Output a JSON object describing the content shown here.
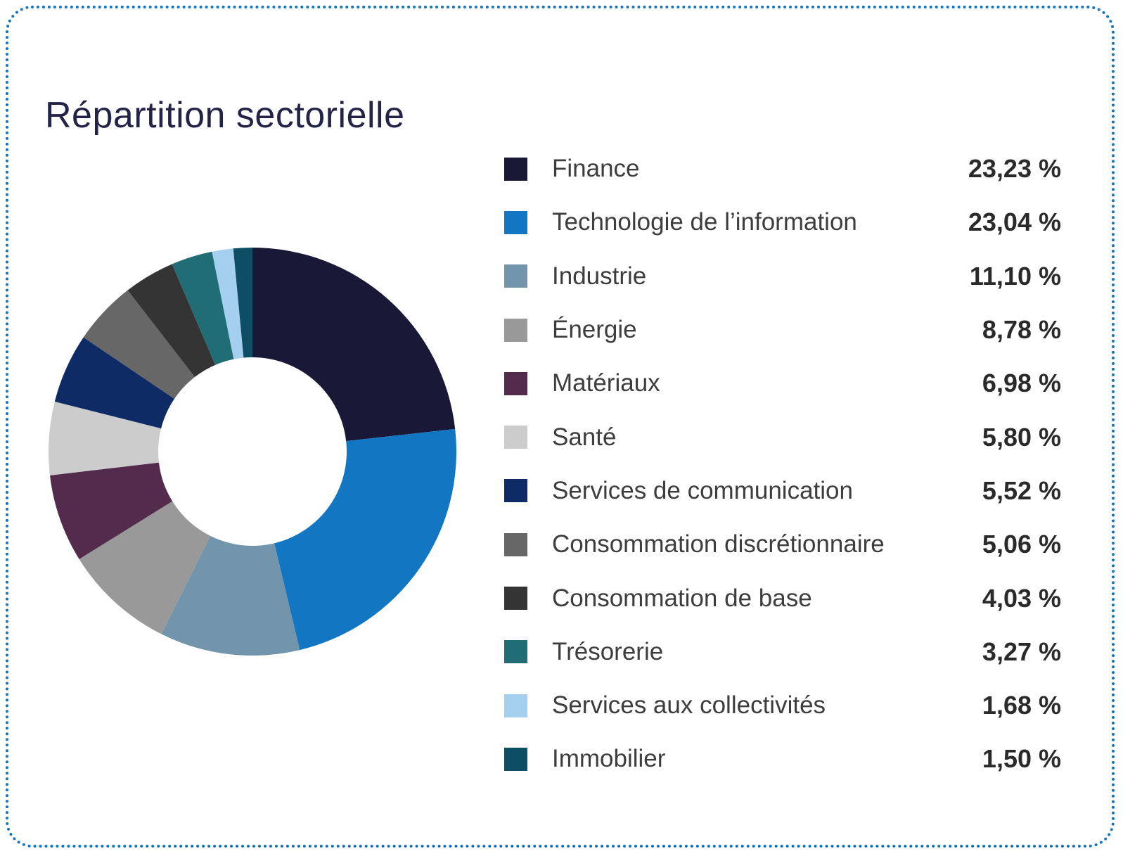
{
  "card": {
    "title": "Répartition sectorielle"
  },
  "colors": {
    "border": "#1173bd",
    "title": "#232347",
    "label_text": "#3d3d3d",
    "value_text": "#2a2a2a"
  },
  "chart_data": {
    "type": "pie",
    "subtype": "donut",
    "title": "Répartition sectorielle",
    "inner_radius_ratio": 0.462,
    "start_angle_deg": -90,
    "direction": "clockwise",
    "legend_position": "right",
    "categories": [
      "Finance",
      "Technologie de l’information",
      "Industrie",
      "Énergie",
      "Matériaux",
      "Santé",
      "Services de communication",
      "Consommation discrétionnaire",
      "Consommation de base",
      "Trésorerie",
      "Services aux collectivités",
      "Immobilier"
    ],
    "values": [
      23.23,
      23.04,
      11.1,
      8.78,
      6.98,
      5.8,
      5.52,
      5.06,
      4.03,
      3.27,
      1.68,
      1.5
    ],
    "value_labels": [
      "23,23 %",
      "23,04 %",
      "11,10 %",
      "8,78 %",
      "6,98 %",
      "5,80 %",
      "5,52 %",
      "5,06 %",
      "4,03 %",
      "3,27 %",
      "1,68 %",
      "1,50 %"
    ],
    "colors": [
      "#191937",
      "#1276c2",
      "#7295ab",
      "#999999",
      "#532c4d",
      "#cccccc",
      "#0e2b66",
      "#676767",
      "#343434",
      "#216d76",
      "#a5cfee",
      "#0e4e64"
    ]
  }
}
